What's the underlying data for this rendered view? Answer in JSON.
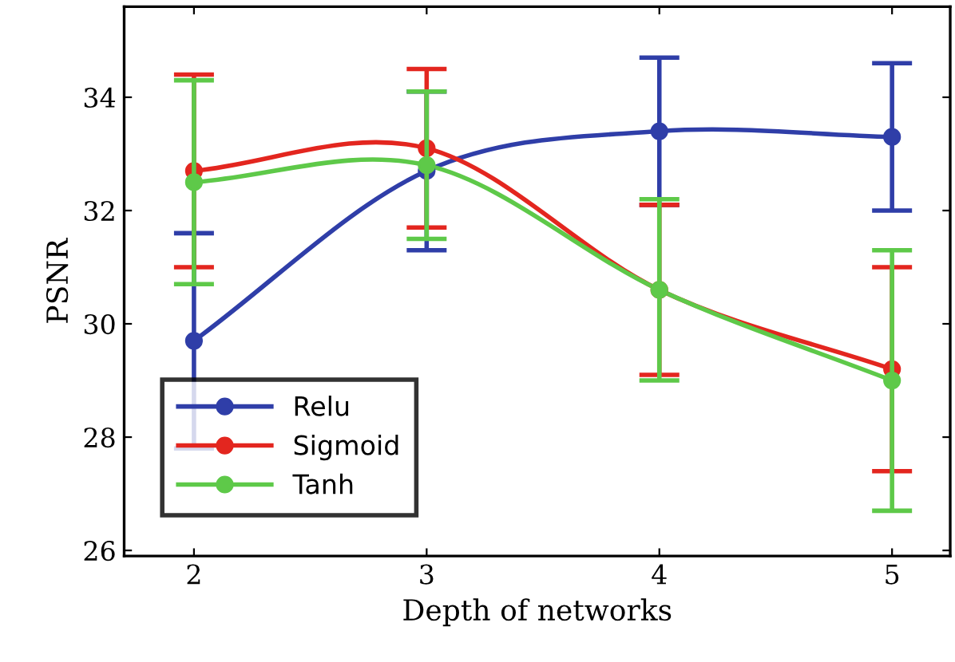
{
  "chart_data": {
    "type": "line",
    "xlabel": "Depth of networks",
    "ylabel": "PSNR",
    "x": [
      2,
      3,
      4,
      5
    ],
    "xlim": [
      1.7,
      5.25
    ],
    "xticks": [
      2,
      3,
      4,
      5
    ],
    "ylim": [
      25.9,
      35.6
    ],
    "yticks": [
      26,
      28,
      30,
      32,
      34
    ],
    "marker": "circle",
    "line_style": "solid",
    "grid": false,
    "legend": "bottom left",
    "series": [
      {
        "name": "Relu",
        "color": "#2f3ea8",
        "values": [
          29.7,
          32.7,
          33.4,
          33.3
        ],
        "errors": [
          [
            27.8,
            31.6
          ],
          [
            31.3,
            34.1
          ],
          [
            32.1,
            34.7
          ],
          [
            32.0,
            34.6
          ]
        ]
      },
      {
        "name": "Sigmoid",
        "color": "#e3261f",
        "values": [
          32.7,
          33.1,
          30.6,
          29.2
        ],
        "errors": [
          [
            31.0,
            34.4
          ],
          [
            31.7,
            34.5
          ],
          [
            29.1,
            32.1
          ],
          [
            27.4,
            31.0
          ]
        ]
      },
      {
        "name": "Tanh",
        "color": "#5ec949",
        "values": [
          32.5,
          32.8,
          30.6,
          29.0
        ],
        "errors": [
          [
            30.7,
            34.3
          ],
          [
            31.5,
            34.1
          ],
          [
            29.0,
            32.2
          ],
          [
            26.7,
            31.3
          ]
        ]
      }
    ]
  }
}
